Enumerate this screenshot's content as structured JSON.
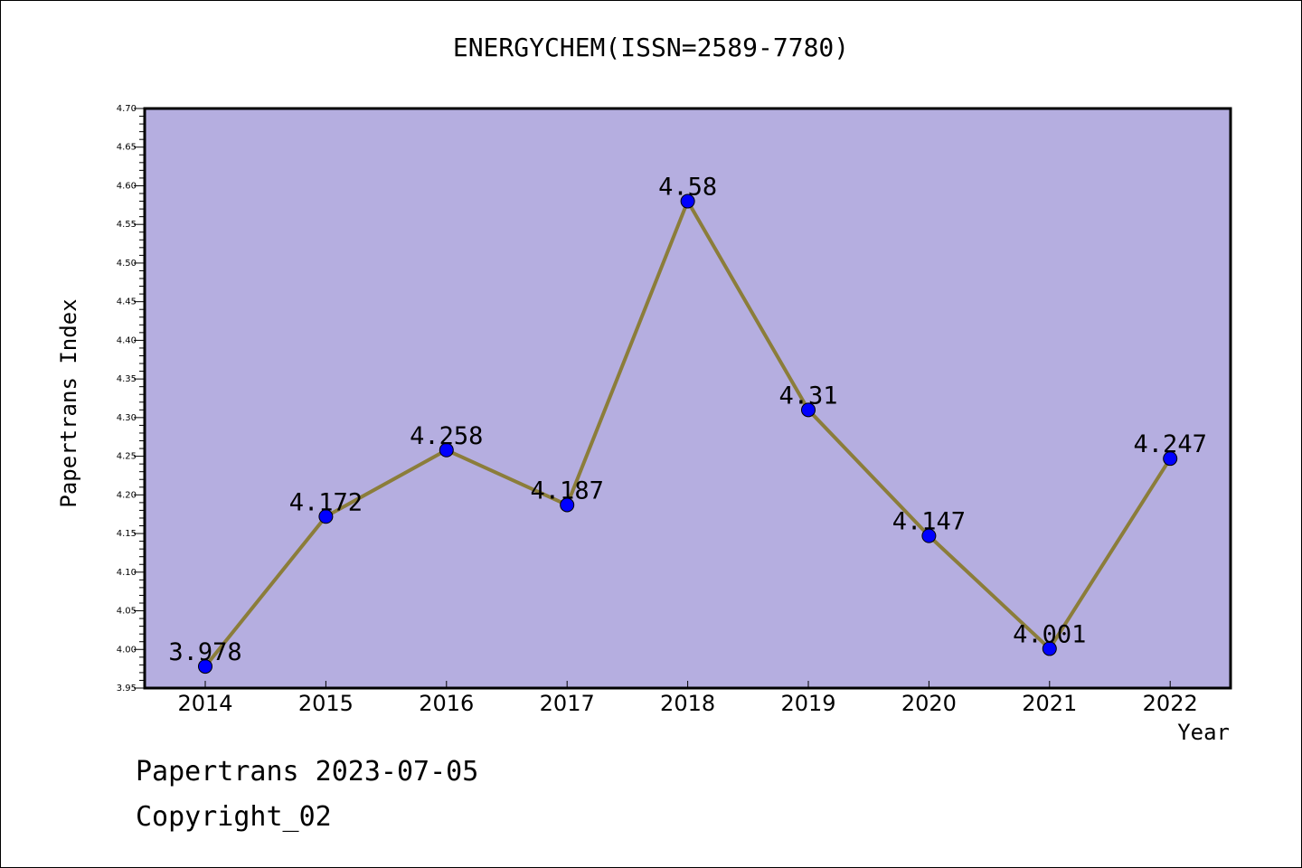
{
  "chart_data": {
    "type": "line",
    "title": "ENERGYCHEM(ISSN=2589-7780)",
    "xlabel": "Year",
    "ylabel": "Papertrans Index",
    "categories": [
      "2014",
      "2015",
      "2016",
      "2017",
      "2018",
      "2019",
      "2020",
      "2021",
      "2022"
    ],
    "values": [
      3.978,
      4.172,
      4.258,
      4.187,
      4.58,
      4.31,
      4.147,
      4.001,
      4.247
    ],
    "data_labels": [
      "3.978",
      "4.172",
      "4.258",
      "4.187",
      "4.58",
      "4.31",
      "4.147",
      "4.001",
      "4.247"
    ],
    "ylim": [
      3.95,
      4.7
    ],
    "yticks": [
      "3.95",
      "4.00",
      "4.05",
      "4.10",
      "4.15",
      "4.20",
      "4.25",
      "4.30",
      "4.35",
      "4.40",
      "4.45",
      "4.50",
      "4.55",
      "4.60",
      "4.65",
      "4.70"
    ],
    "grid": false,
    "legend": "none",
    "colors": {
      "plot_background": "#b5aee0",
      "line": "#8b7d3a",
      "marker": "#0000ff"
    }
  },
  "footer": {
    "date_text": "Papertrans 2023-07-05",
    "copyright_text": "Copyright_02"
  }
}
